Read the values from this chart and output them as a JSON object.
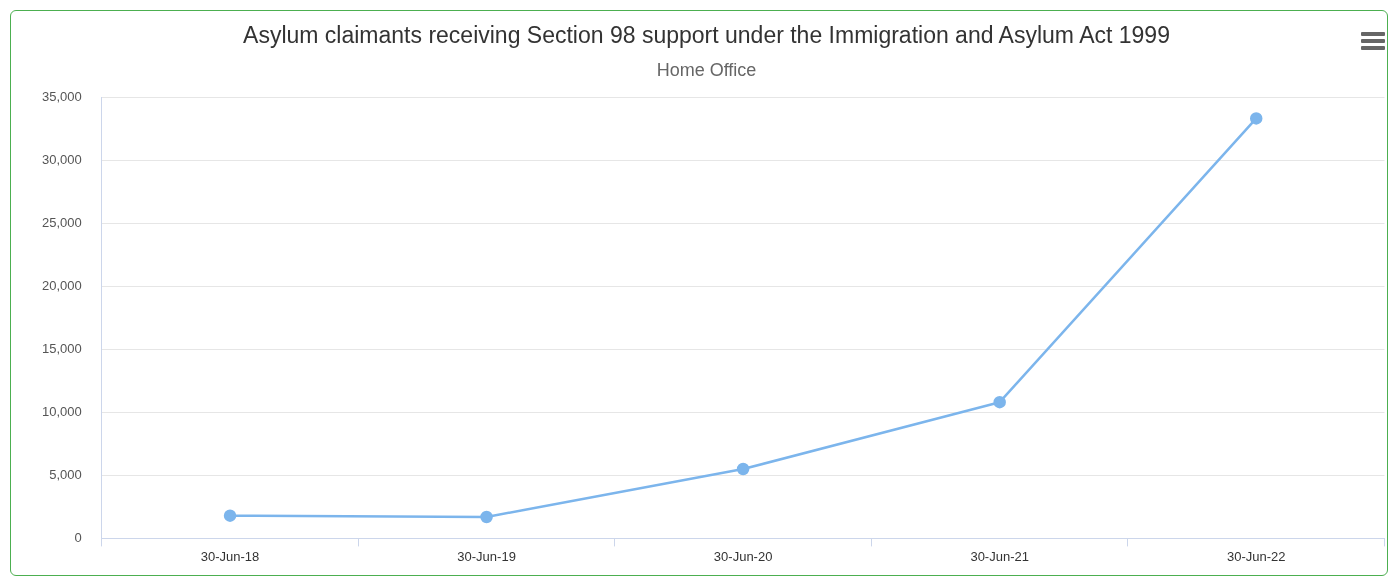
{
  "chart_data": {
    "type": "line",
    "title": "Asylum claimants receiving Section 98 support under the Immigration and Asylum Act 1999",
    "subtitle": "Home Office",
    "categories": [
      "30-Jun-18",
      "30-Jun-19",
      "30-Jun-20",
      "30-Jun-21",
      "30-Jun-22"
    ],
    "series": [
      {
        "color": "#7cb5ec",
        "values": [
          1800,
          1700,
          5500,
          10800,
          33300
        ]
      }
    ],
    "ylim": [
      0,
      35000
    ],
    "yticks": [
      {
        "value": 0,
        "label": "0"
      },
      {
        "value": 5000,
        "label": "5,000"
      },
      {
        "value": 10000,
        "label": "10,000"
      },
      {
        "value": 15000,
        "label": "15,000"
      },
      {
        "value": 20000,
        "label": "20,000"
      },
      {
        "value": 25000,
        "label": "25,000"
      },
      {
        "value": 30000,
        "label": "30,000"
      },
      {
        "value": 35000,
        "label": "35,000"
      }
    ],
    "grid": "y",
    "legend": false,
    "marker": "circle",
    "line_style": "solid"
  }
}
